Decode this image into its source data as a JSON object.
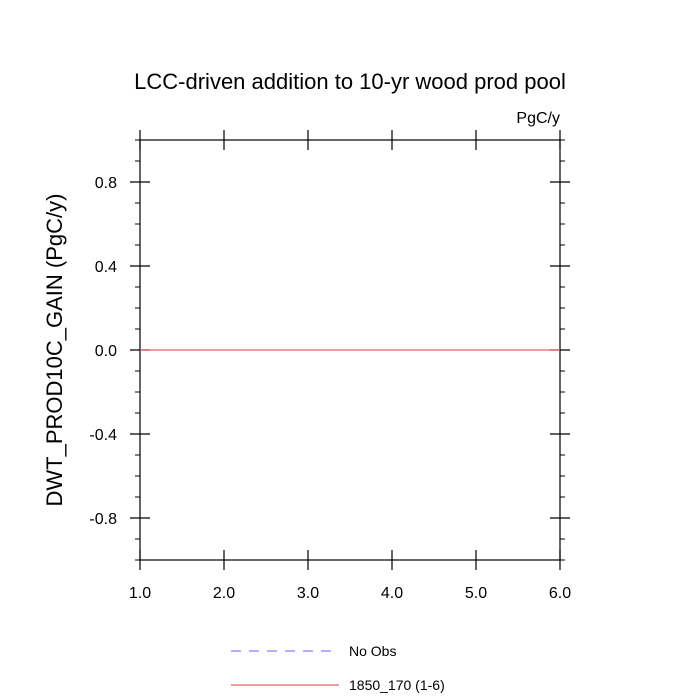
{
  "chart_data": {
    "type": "line",
    "title": "LCC-driven addition to 10-yr wood prod pool",
    "units": "PgC/y",
    "xlabel": "",
    "ylabel": "DWT_PROD10C_GAIN  (PgC/y)",
    "xlim": [
      1.0,
      6.0
    ],
    "ylim": [
      -1.0,
      1.0
    ],
    "x_ticks": [
      "1.0",
      "2.0",
      "3.0",
      "4.0",
      "5.0",
      "6.0"
    ],
    "y_ticks": [
      "0.8",
      "0.4",
      "0.0",
      "-0.4",
      "-0.8"
    ],
    "y_tick_values": [
      0.8,
      0.4,
      0.0,
      -0.4,
      -0.8
    ],
    "legend_placement": "bottom",
    "grid": false,
    "series": [
      {
        "name": "No Obs",
        "color": "#8080ff",
        "style": "dashed",
        "x": [],
        "y": []
      },
      {
        "name": "1850_170 (1-6)",
        "color": "#e06666",
        "style": "solid",
        "x": [
          1,
          2,
          3,
          4,
          5,
          6
        ],
        "y": [
          0.0,
          0.0,
          0.0,
          0.0,
          0.0,
          0.0
        ]
      }
    ]
  }
}
